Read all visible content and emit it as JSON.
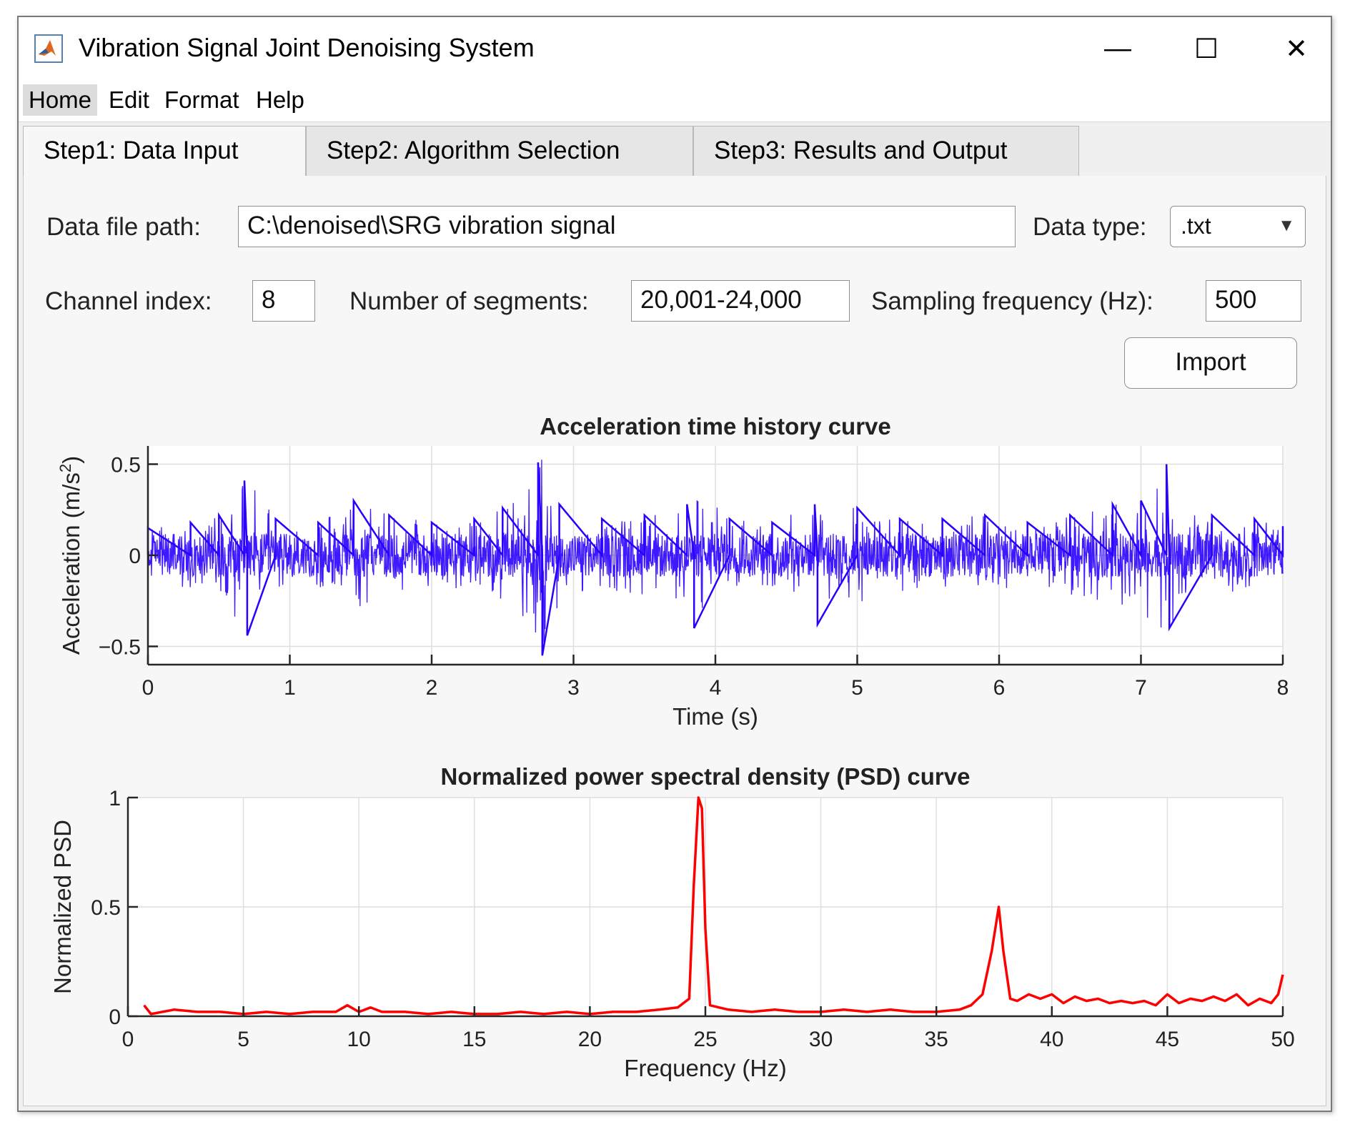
{
  "window": {
    "title": "Vibration Signal Joint Denoising System",
    "controls": {
      "minimize": "—",
      "maximize": "☐",
      "close": "✕"
    }
  },
  "menu": [
    "Home",
    "Edit",
    "Format",
    "Help"
  ],
  "tabs": [
    "Step1:  Data Input",
    "Step2:  Algorithm Selection",
    "Step3:  Results and Output"
  ],
  "form": {
    "file_path_label": "Data file path:",
    "file_path_value": "C:\\denoised\\SRG vibration signal",
    "data_type_label": "Data type:",
    "data_type_value": ".txt",
    "channel_label": "Channel index:",
    "channel_value": "8",
    "segments_label": "Number of segments:",
    "segments_value": "20,001-24,000",
    "fs_label": "Sampling frequency (Hz):",
    "fs_value": "500",
    "import_label": "Import"
  },
  "chart_data": [
    {
      "type": "line",
      "title": "Acceleration time history curve",
      "xlabel": "Time  (s)",
      "ylabel": "Acceleration  (m/s",
      "ylabel_sup": "2",
      "ylabel_end": ")",
      "xlim": [
        0,
        8
      ],
      "ylim": [
        -0.6,
        0.6
      ],
      "xticks": [
        0,
        1,
        2,
        3,
        4,
        5,
        6,
        7,
        8
      ],
      "yticks": [
        -0.5,
        0,
        0.5
      ],
      "ytick_labels": [
        "−0.5",
        "0",
        "0.5"
      ],
      "grid": true,
      "color": "#2a00ff",
      "series": [
        {
          "x": [
            0,
            0.3,
            0.5,
            0.68,
            0.7,
            0.9,
            1.2,
            1.45,
            1.7,
            2.0,
            2.3,
            2.5,
            2.75,
            2.78,
            2.9,
            3.2,
            3.5,
            3.8,
            3.85,
            4.1,
            4.4,
            4.7,
            4.72,
            5.0,
            5.3,
            5.6,
            5.9,
            6.2,
            6.5,
            6.8,
            7.0,
            7.18,
            7.2,
            7.5,
            7.8,
            8.0
          ],
          "y": [
            0.15,
            0.18,
            0.22,
            0.41,
            -0.44,
            0.2,
            0.18,
            0.3,
            0.22,
            0.18,
            0.2,
            0.26,
            0.51,
            -0.55,
            0.28,
            0.2,
            0.22,
            0.28,
            -0.4,
            0.2,
            0.18,
            0.28,
            -0.38,
            0.26,
            0.2,
            0.2,
            0.22,
            0.18,
            0.22,
            0.28,
            0.3,
            0.5,
            -0.4,
            0.22,
            0.2,
            0.16
          ]
        }
      ]
    },
    {
      "type": "line",
      "title": "Normalized power spectral density (PSD) curve",
      "xlabel": "Frequency  (Hz)",
      "ylabel": "Normalized PSD",
      "xlim": [
        0,
        50
      ],
      "ylim": [
        0,
        1
      ],
      "xticks": [
        0,
        5,
        10,
        15,
        20,
        25,
        30,
        35,
        40,
        45,
        50
      ],
      "yticks": [
        0,
        0.5,
        1
      ],
      "ytick_labels": [
        "0",
        "0.5",
        "1"
      ],
      "grid": true,
      "color": "#ff0000",
      "series": [
        {
          "x": [
            0.7,
            1,
            2,
            3,
            4,
            5,
            6,
            7,
            8,
            9,
            9.5,
            10,
            10.5,
            11,
            12,
            13,
            14,
            15,
            16,
            17,
            18,
            19,
            20,
            21,
            22,
            23,
            23.8,
            24.3,
            24.5,
            24.7,
            24.85,
            25.0,
            25.2,
            25.6,
            26,
            27,
            28,
            29,
            30,
            31,
            32,
            33,
            34,
            35,
            36,
            36.5,
            37.0,
            37.4,
            37.7,
            37.9,
            38.2,
            38.5,
            39,
            39.5,
            40,
            40.5,
            41,
            41.5,
            42,
            42.5,
            43,
            43.5,
            44,
            44.5,
            45,
            45.5,
            46,
            46.5,
            47,
            47.5,
            48,
            48.5,
            49,
            49.5,
            49.8,
            50
          ],
          "y": [
            0.05,
            0.01,
            0.03,
            0.02,
            0.02,
            0.01,
            0.02,
            0.01,
            0.02,
            0.02,
            0.05,
            0.02,
            0.04,
            0.02,
            0.02,
            0.01,
            0.02,
            0.01,
            0.01,
            0.02,
            0.01,
            0.02,
            0.01,
            0.02,
            0.02,
            0.03,
            0.04,
            0.08,
            0.6,
            1.0,
            0.95,
            0.4,
            0.05,
            0.04,
            0.03,
            0.02,
            0.03,
            0.02,
            0.02,
            0.03,
            0.02,
            0.03,
            0.02,
            0.02,
            0.03,
            0.05,
            0.1,
            0.3,
            0.5,
            0.3,
            0.08,
            0.07,
            0.1,
            0.08,
            0.1,
            0.06,
            0.09,
            0.07,
            0.08,
            0.06,
            0.07,
            0.06,
            0.07,
            0.05,
            0.1,
            0.06,
            0.08,
            0.07,
            0.09,
            0.07,
            0.1,
            0.05,
            0.08,
            0.06,
            0.1,
            0.19
          ]
        }
      ]
    }
  ]
}
